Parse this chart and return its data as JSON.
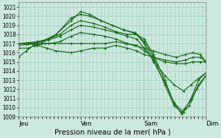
{
  "xlabel": "Pression niveau de la mer( hPa )",
  "ylim": [
    1009,
    1021.5
  ],
  "yticks": [
    1009,
    1010,
    1011,
    1012,
    1013,
    1014,
    1015,
    1016,
    1017,
    1018,
    1019,
    1020,
    1021
  ],
  "day_labels": [
    "Jeu",
    "Ven",
    "Sam",
    "Dim"
  ],
  "day_positions": [
    0.0,
    0.333,
    0.667,
    1.0
  ],
  "bg_color": "#cce8df",
  "grid_color": "#99ccbb",
  "line_color": "#1a6b1a",
  "lines": [
    {
      "x": [
        0.0,
        0.04,
        0.08,
        0.12,
        0.2,
        0.28,
        0.33,
        0.38,
        0.44,
        0.5,
        0.56,
        0.62,
        0.67,
        0.72,
        0.78,
        0.83,
        0.87,
        0.91,
        0.95,
        1.0
      ],
      "y": [
        1015.5,
        1016.2,
        1016.8,
        1017.0,
        1018.0,
        1019.5,
        1020.5,
        1020.2,
        1019.5,
        1019.0,
        1018.5,
        1018.1,
        1017.5,
        1015.8,
        1013.0,
        1010.5,
        1009.3,
        1010.2,
        1012.0,
        1013.5
      ]
    },
    {
      "x": [
        0.0,
        0.04,
        0.08,
        0.12,
        0.2,
        0.28,
        0.33,
        0.38,
        0.44,
        0.5,
        0.56,
        0.62,
        0.67,
        0.72,
        0.78,
        0.83,
        0.87,
        0.92,
        0.96,
        1.0
      ],
      "y": [
        1016.8,
        1016.9,
        1017.0,
        1017.2,
        1018.0,
        1019.8,
        1020.2,
        1020.0,
        1019.5,
        1019.0,
        1018.5,
        1018.2,
        1017.2,
        1015.5,
        1012.5,
        1010.2,
        1009.5,
        1010.8,
        1012.5,
        1013.5
      ]
    },
    {
      "x": [
        0.0,
        0.05,
        0.1,
        0.16,
        0.22,
        0.28,
        0.33,
        0.4,
        0.46,
        0.52,
        0.58,
        0.63,
        0.67,
        0.72,
        0.78,
        0.83,
        0.88,
        0.92,
        0.96,
        1.0
      ],
      "y": [
        1017.0,
        1017.1,
        1017.2,
        1017.5,
        1018.0,
        1019.0,
        1019.5,
        1019.2,
        1018.8,
        1018.3,
        1018.0,
        1018.0,
        1017.0,
        1015.0,
        1012.8,
        1010.5,
        1009.5,
        1011.0,
        1013.0,
        1013.8
      ]
    },
    {
      "x": [
        0.0,
        0.05,
        0.1,
        0.16,
        0.22,
        0.28,
        0.33,
        0.4,
        0.46,
        0.52,
        0.58,
        0.63,
        0.67,
        0.72,
        0.78,
        0.83,
        0.88,
        0.92,
        0.96,
        1.0
      ],
      "y": [
        1017.0,
        1017.0,
        1017.2,
        1017.4,
        1017.8,
        1018.5,
        1019.0,
        1018.8,
        1018.5,
        1018.2,
        1017.8,
        1017.5,
        1016.5,
        1015.2,
        1013.5,
        1012.5,
        1011.8,
        1012.5,
        1013.2,
        1013.8
      ]
    },
    {
      "x": [
        0.0,
        0.05,
        0.1,
        0.16,
        0.22,
        0.28,
        0.33,
        0.4,
        0.46,
        0.52,
        0.58,
        0.63,
        0.67,
        0.72,
        0.78,
        0.84,
        0.89,
        0.93,
        0.97,
        1.0
      ],
      "y": [
        1017.0,
        1017.0,
        1017.0,
        1017.0,
        1017.2,
        1017.8,
        1018.2,
        1018.0,
        1017.8,
        1017.5,
        1017.0,
        1016.8,
        1016.2,
        1015.5,
        1015.0,
        1014.8,
        1014.8,
        1015.0,
        1015.0,
        1015.0
      ]
    },
    {
      "x": [
        0.0,
        0.05,
        0.1,
        0.15,
        0.2,
        0.28,
        0.33,
        0.4,
        0.46,
        0.52,
        0.58,
        0.63,
        0.67,
        0.72,
        0.78,
        0.84,
        0.89,
        0.93,
        0.97,
        1.0
      ],
      "y": [
        1017.0,
        1017.0,
        1016.8,
        1016.5,
        1016.2,
        1016.0,
        1016.2,
        1016.5,
        1016.5,
        1016.8,
        1016.5,
        1016.2,
        1015.8,
        1015.5,
        1015.2,
        1015.0,
        1015.2,
        1015.5,
        1015.5,
        1015.0
      ]
    },
    {
      "x": [
        0.0,
        0.05,
        0.09,
        0.14,
        0.19,
        0.28,
        0.33,
        0.4,
        0.46,
        0.52,
        0.57,
        0.62,
        0.67,
        0.72,
        0.78,
        0.84,
        0.89,
        0.93,
        0.97,
        1.0
      ],
      "y": [
        1016.5,
        1016.5,
        1016.8,
        1017.0,
        1017.0,
        1017.0,
        1017.0,
        1017.0,
        1017.0,
        1017.2,
        1017.0,
        1016.8,
        1016.5,
        1016.2,
        1015.8,
        1015.5,
        1015.8,
        1016.0,
        1015.8,
        1015.0
      ]
    }
  ]
}
